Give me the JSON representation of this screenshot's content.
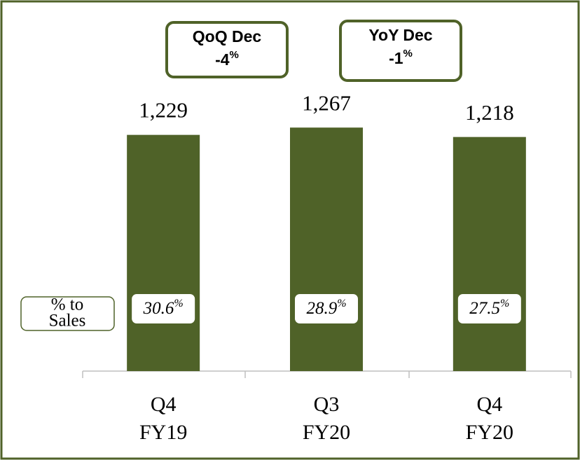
{
  "chart_data": {
    "type": "bar",
    "categories": [
      [
        "Q4",
        "FY19"
      ],
      [
        "Q3",
        "FY20"
      ],
      [
        "Q4",
        "FY20"
      ]
    ],
    "values": [
      1229,
      1267,
      1218
    ],
    "value_labels": [
      "1,229",
      "1,267",
      "1,218"
    ],
    "color": "#4f6228",
    "ylim": [
      0,
      1400
    ],
    "pct_label": [
      "% to",
      "Sales"
    ],
    "pct_values": [
      30.6,
      28.9,
      27.5
    ],
    "pct_unit": "%",
    "annotations": [
      {
        "title": "QoQ Dec",
        "value": -4,
        "unit": "%"
      },
      {
        "title": "YoY Dec",
        "value": -1,
        "unit": "%"
      }
    ]
  }
}
